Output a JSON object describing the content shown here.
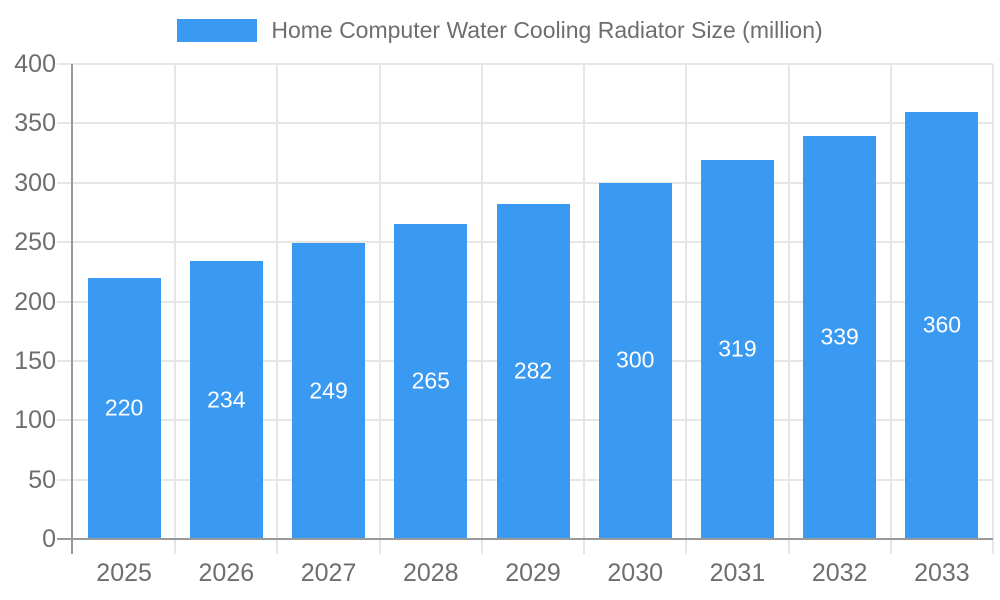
{
  "legend": {
    "label": "Home Computer Water Cooling Radiator Size (million)"
  },
  "chart_data": {
    "type": "bar",
    "title": "Home Computer Water Cooling Radiator Size (million)",
    "categories": [
      "2025",
      "2026",
      "2027",
      "2028",
      "2029",
      "2030",
      "2031",
      "2032",
      "2033"
    ],
    "series": [
      {
        "name": "Home Computer Water Cooling Radiator Size (million)",
        "values": [
          220,
          234,
          249,
          265,
          282,
          300,
          319,
          339,
          360
        ]
      }
    ],
    "values": [
      220,
      234,
      249,
      265,
      282,
      300,
      319,
      339,
      360
    ],
    "data_labels": [
      220,
      234,
      249,
      265,
      282,
      300,
      319,
      339,
      360
    ],
    "xlabel": "",
    "ylabel": "",
    "ylim": [
      0,
      400
    ],
    "ytick_interval": 50,
    "yticks": [
      0,
      50,
      100,
      150,
      200,
      250,
      300,
      350,
      400
    ],
    "grid": true,
    "legend_position": "top-center",
    "colors": {
      "bar": "#3A99F1",
      "bar_label": "#FFFFFF",
      "axis": "#999999",
      "gridline": "#E6E6E6",
      "tick_label": "#6E6E6E",
      "legend_text": "#6E6E6E",
      "background": "#FFFFFF"
    }
  }
}
